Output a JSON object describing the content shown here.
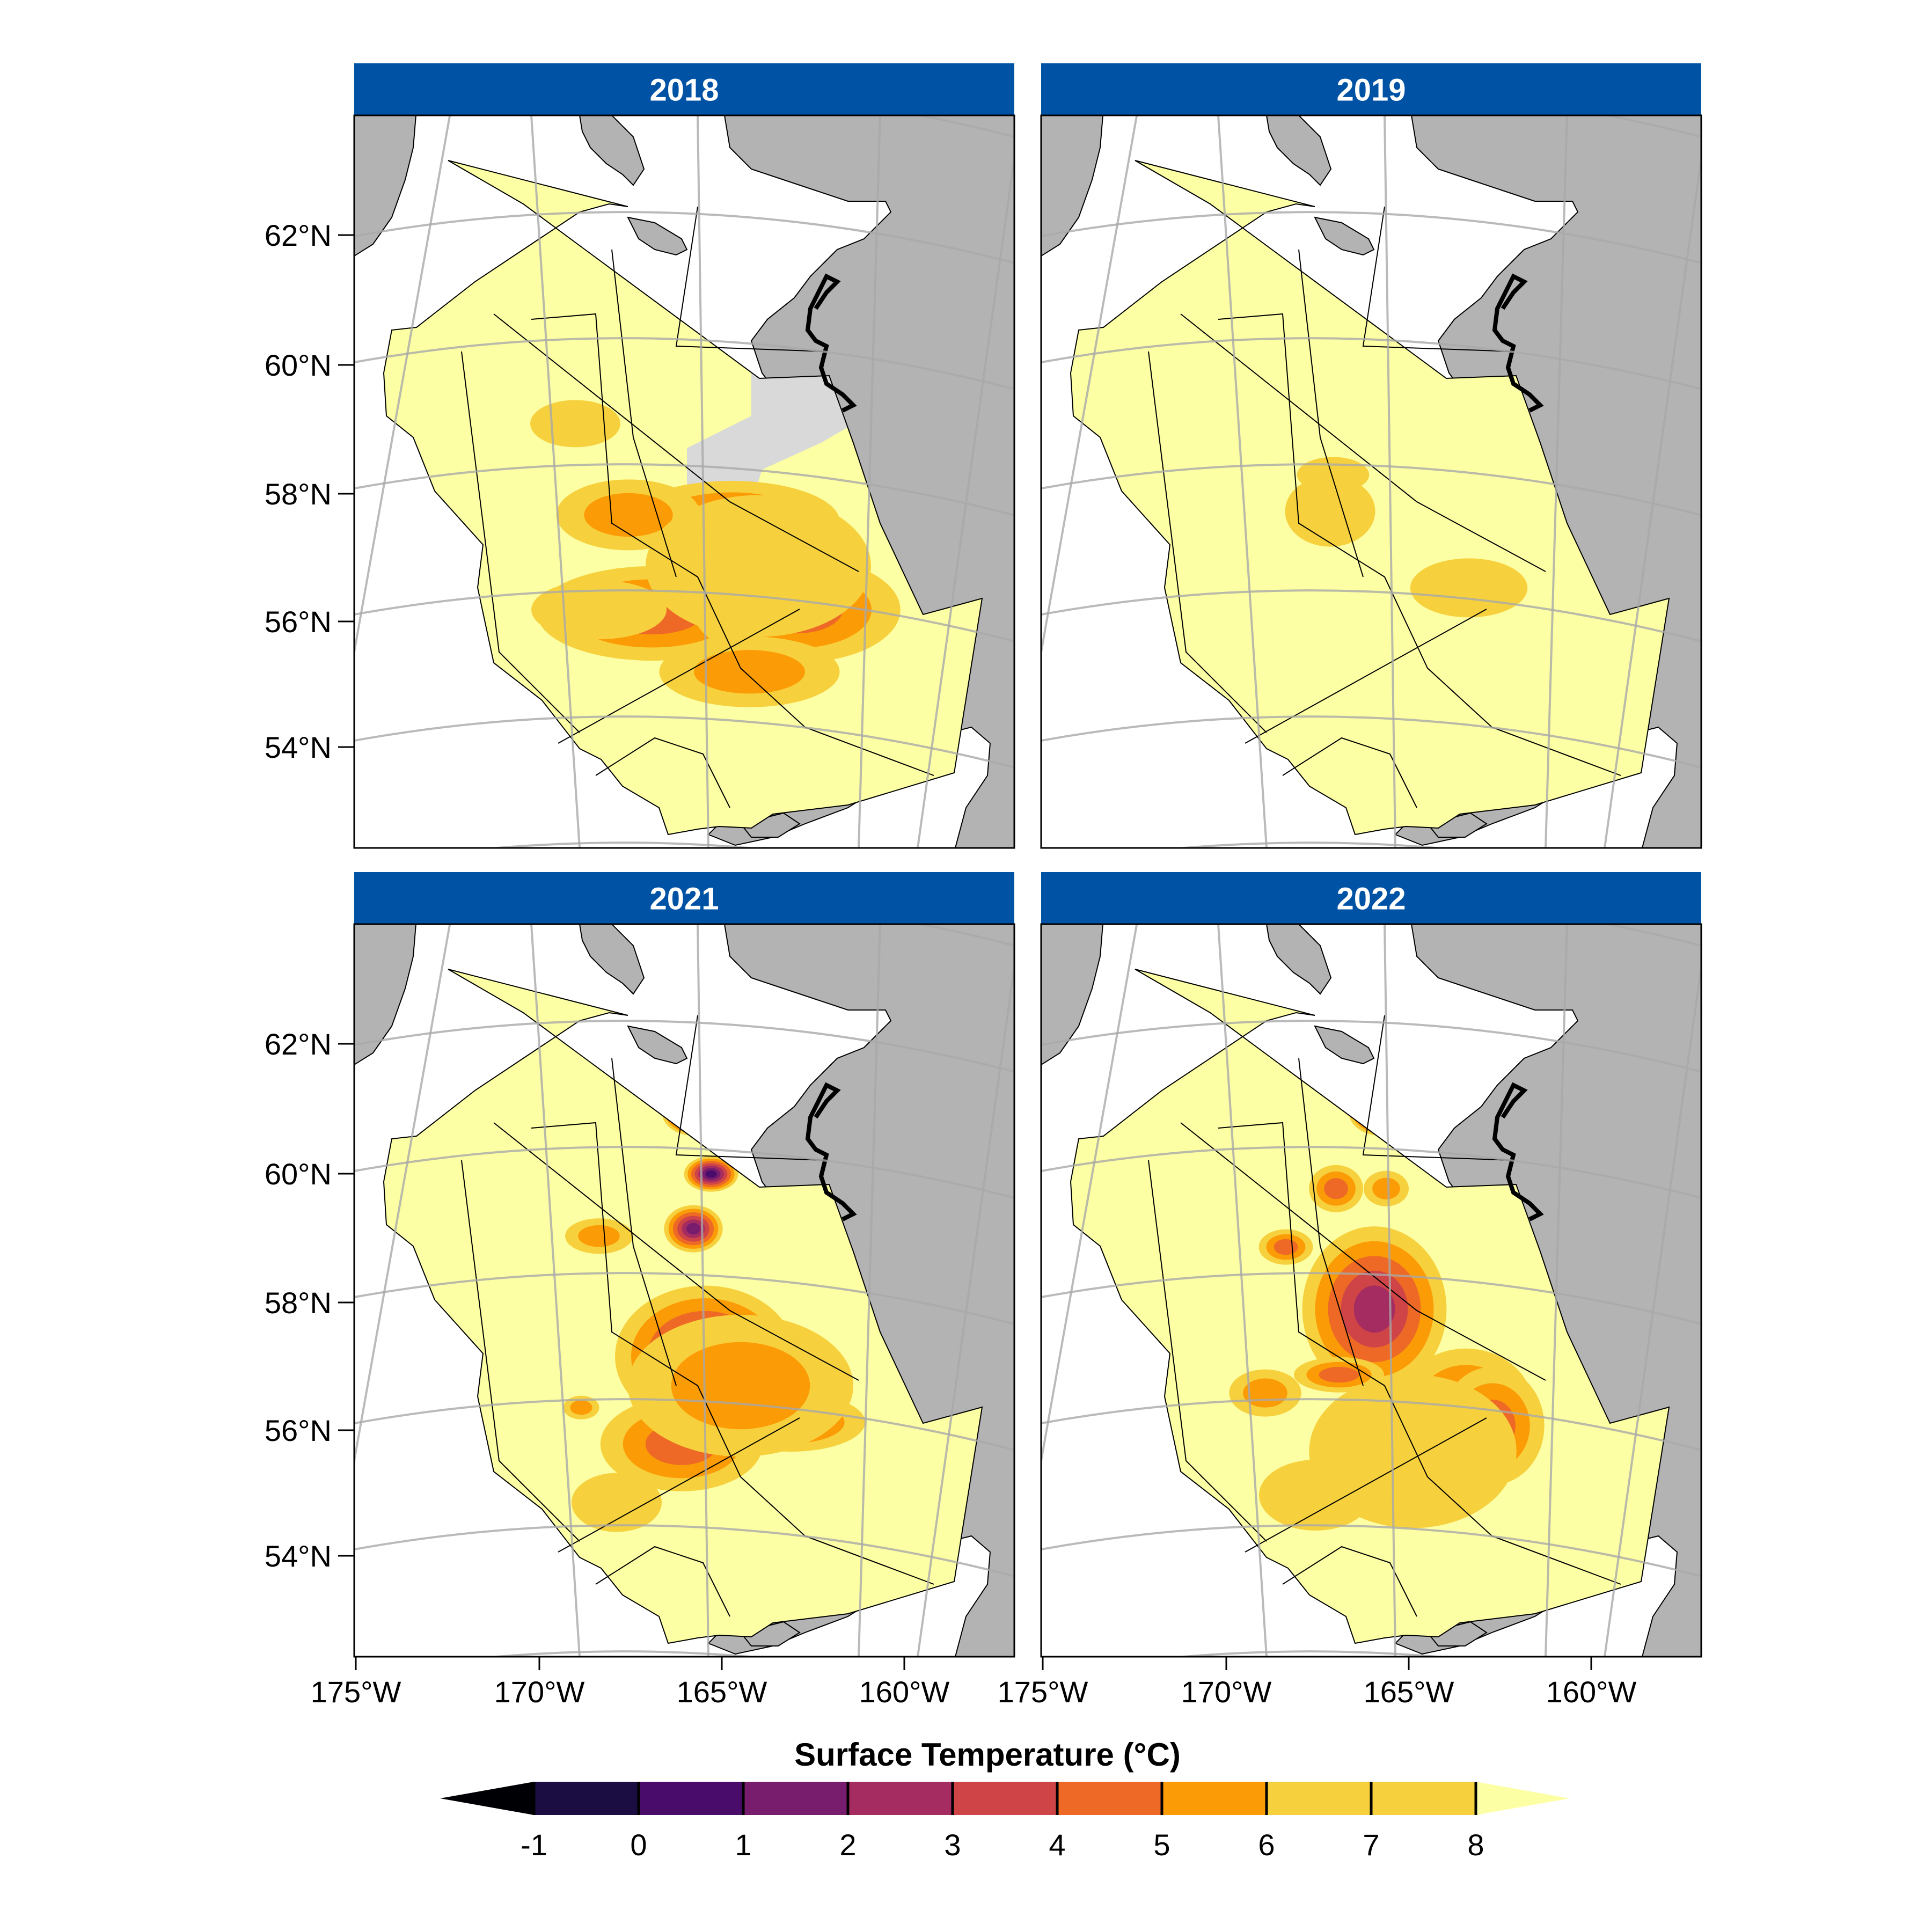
{
  "panels": [
    {
      "year": "2018",
      "hot": [
        [
          -3.0,
          -1.0,
          5.1,
          8,
          5
        ],
        [
          1.9,
          -0.9,
          4.6,
          9,
          4.7
        ],
        [
          -0.3,
          1.5,
          4.8,
          7,
          5.5
        ],
        [
          0.3,
          -2.6,
          4.0,
          6,
          6.5
        ],
        [
          -3.8,
          1.7,
          3.2,
          6,
          6.2
        ],
        [
          -5.6,
          4.2,
          2.0,
          4,
          6.6
        ],
        [
          -4.8,
          -0.9,
          3.0,
          5,
          6.8
        ],
        [
          0.6,
          0.3,
          5.0,
          12,
          7.2
        ]
      ],
      "greyBlock": true
    },
    {
      "year": "2019",
      "hot": [
        [
          -1.5,
          7.5,
          1.2,
          3,
          4.6
        ],
        [
          1.4,
          -0.3,
          2.6,
          5,
          7.0
        ],
        [
          -3.2,
          2.8,
          1.6,
          3,
          7.2
        ],
        [
          -3.3,
          1.8,
          2.0,
          6,
          7.5
        ]
      ],
      "greyBlock": false
    },
    {
      "year": "2021",
      "hot": [
        [
          -1.6,
          7.5,
          1.4,
          4,
          -0.8
        ],
        [
          -1.0,
          5.8,
          1.2,
          3,
          1.5
        ],
        [
          -1.6,
          4.3,
          1.3,
          4,
          2.5
        ],
        [
          -1.2,
          0.8,
          4.0,
          12,
          3.0
        ],
        [
          -2.0,
          -1.6,
          3.6,
          8,
          4.6
        ],
        [
          1.7,
          -1.0,
          3.3,
          5,
          4.8
        ],
        [
          -4.8,
          4.1,
          1.5,
          3,
          6.5
        ],
        [
          -5.4,
          -0.6,
          0.8,
          2,
          5.8
        ],
        [
          0.0,
          0.0,
          5.0,
          12,
          6.0
        ],
        [
          -4.2,
          -3.2,
          2.0,
          5,
          6.8
        ]
      ],
      "greyBlock": false
    },
    {
      "year": "2022",
      "hot": [
        [
          -1.6,
          7.5,
          1.4,
          4,
          -0.3
        ],
        [
          -3.1,
          5.4,
          1.2,
          4,
          4.8
        ],
        [
          -1.4,
          5.4,
          1.0,
          3,
          5.6
        ],
        [
          -1.8,
          2.1,
          3.2,
          14,
          3.5
        ],
        [
          -3.0,
          0.3,
          2.0,
          3,
          5.0
        ],
        [
          1.3,
          -0.6,
          3.0,
          10,
          5.2
        ],
        [
          2.2,
          -1.1,
          2.3,
          10,
          5.0
        ],
        [
          -4.8,
          3.8,
          1.2,
          3,
          5.4
        ],
        [
          -5.5,
          -0.2,
          1.6,
          4,
          6.0
        ],
        [
          -0.5,
          -1.8,
          4.6,
          13,
          6.6
        ],
        [
          -3.8,
          -3.0,
          2.5,
          6,
          7.2
        ]
      ],
      "greyBlock": false
    }
  ],
  "lat_labels": [
    "62°N",
    "60°N",
    "58°N",
    "56°N",
    "54°N"
  ],
  "lon_labels_left": [
    "175°W",
    "170°W",
    "165°W",
    "160°W"
  ],
  "lon_labels_right": [
    "175°W",
    "170°W",
    "165°W",
    "160°W"
  ],
  "legend": {
    "title": "Surface Temperature (°C)",
    "ticks": [
      "-1",
      "0",
      "1",
      "2",
      "3",
      "4",
      "5",
      "6",
      "7",
      "8"
    ]
  },
  "colors": {
    "strip": "#0052a5",
    "land": "#b3b3b3",
    "no_data": "#d9d9d9",
    "graticule": "#a9a9a9",
    "palette": [
      "#000004",
      "#1b0c41",
      "#4a0c6b",
      "#781c6d",
      "#a52c60",
      "#cf4446",
      "#ed6925",
      "#fb9b06",
      "#f7d13d",
      "#fcffa4"
    ]
  }
}
